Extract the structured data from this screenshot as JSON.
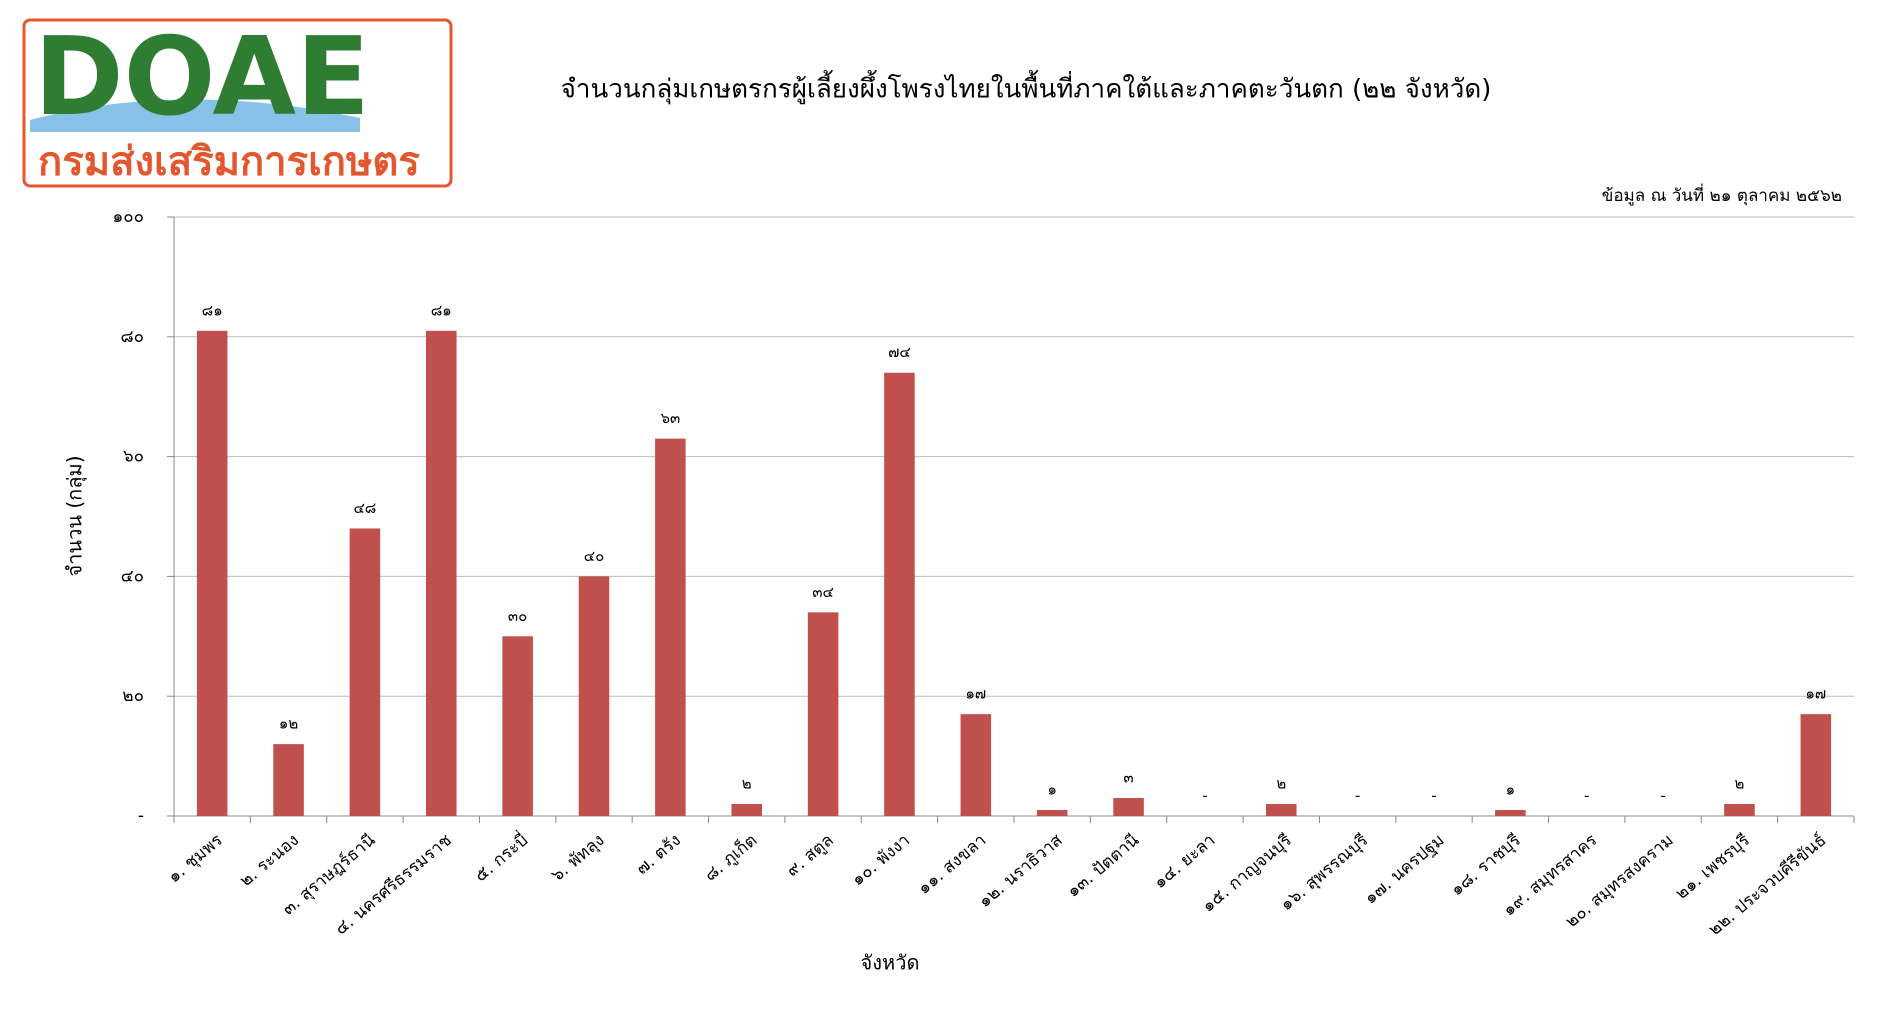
{
  "logo": {
    "text": "DOAE",
    "subtitle": "กรมส่งเสริมการเกษตร"
  },
  "chart_data": {
    "type": "bar",
    "title": "จำนวนกลุ่มเกษตรกรผู้เลี้ยงผึ้งโพรงไทยในพื้นที่ภาคใต้และภาคตะวันตก (๒๒ จังหวัด)",
    "note": "ข้อมูล ณ วันที่ ๒๑ ตุลาคม ๒๕๖๒",
    "y_label": "จำนวน (กลุ่ม)",
    "x_label": "จังหวัด",
    "categories": [
      "๑. ชุมพร",
      "๒. ระนอง",
      "๓. สุราษฎร์ธานี",
      "๔. นครศรีธรรมราช",
      "๕. กระบี่",
      "๖. พัทลุง",
      "๗. ตรัง",
      "๘. ภูเก็ต",
      "๙. สตูล",
      "๑๐. พังงา",
      "๑๑. สงขลา",
      "๑๒. นราธิวาส",
      "๑๓. ปัตตานี",
      "๑๔. ยะลา",
      "๑๕. กาญจนบุรี",
      "๑๖. สุพรรณบุรี",
      "๑๗. นครปฐม",
      "๑๘. ราชบุรี",
      "๑๙. สมุทรสาคร",
      "๒๐. สมุทรสงคราม",
      "๒๑. เพชรบุรี",
      "๒๒. ประจวบคีรีขันธ์"
    ],
    "values": [
      81,
      12,
      48,
      81,
      30,
      40,
      63,
      2,
      34,
      74,
      17,
      1,
      3,
      0,
      2,
      0,
      0,
      1,
      0,
      0,
      2,
      17
    ],
    "value_labels": [
      "๘๑",
      "๑๒",
      "๔๘",
      "๘๑",
      "๓๐",
      "๔๐",
      "๖๓",
      "๒",
      "๓๔",
      "๗๔",
      "๑๗",
      "๑",
      "๓",
      "-",
      "๒",
      "-",
      "-",
      "๑",
      "-",
      "-",
      "๒",
      "๑๗"
    ],
    "color": "#c0504d",
    "ylim": [
      0,
      100
    ],
    "yticks": [
      {
        "value": 0,
        "label": "-"
      },
      {
        "value": 20,
        "label": "๒๐"
      },
      {
        "value": 40,
        "label": "๔๐"
      },
      {
        "value": 60,
        "label": "๖๐"
      },
      {
        "value": 80,
        "label": "๘๐"
      },
      {
        "value": 100,
        "label": "๑๐๐"
      }
    ],
    "grid": true
  }
}
